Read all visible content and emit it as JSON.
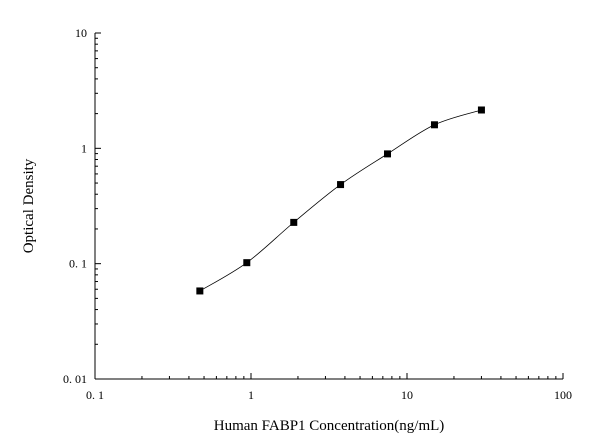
{
  "chart_data": {
    "type": "scatter",
    "title": "",
    "xlabel": "Human FABP1 Concentration(ng/mL)",
    "ylabel": "Optical Density",
    "x_scale": "log",
    "y_scale": "log",
    "xlim": [
      0.1,
      100
    ],
    "ylim": [
      0.01,
      10
    ],
    "x_ticks": [
      "0. 1",
      "1",
      "10",
      "100"
    ],
    "y_ticks": [
      "0. 01",
      "0. 1",
      "1",
      "10"
    ],
    "grid": false,
    "legend": "none",
    "series": [
      {
        "x": [
          0.47,
          0.94,
          1.88,
          3.75,
          7.5,
          15,
          30
        ],
        "y": [
          0.058,
          0.102,
          0.228,
          0.485,
          0.895,
          1.6,
          2.15
        ],
        "marker": "square",
        "line": "smooth",
        "color": "#000000"
      }
    ]
  }
}
